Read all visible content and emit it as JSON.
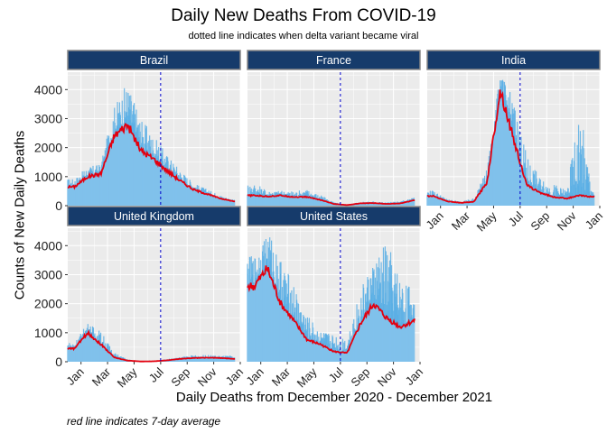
{
  "chart_data": {
    "type": "area",
    "title": "Daily New Deaths From COVID-19",
    "subtitle": "dotted line indicates when delta variant became viral",
    "xlabel": "Daily Deaths from December 2020 - December 2021",
    "ylabel": "Counts of New Daily Deaths",
    "caption": "red line indicates 7-day average",
    "x_ticks": [
      "Jan",
      "Mar",
      "May",
      "Jul",
      "Sep",
      "Nov",
      "Jan"
    ],
    "y_ticks": [
      0,
      1000,
      2000,
      3000,
      4000
    ],
    "ylim": [
      0,
      4600
    ],
    "delta_marker": "2021-07-01",
    "colors": {
      "daily": "#5aafe5",
      "average": "#e3000f",
      "marker": "#0000cc",
      "strip": "#163b6b",
      "panel": "#ebebeb"
    },
    "x_months": [
      "2020-12",
      "2021-01",
      "2021-02",
      "2021-03",
      "2021-04",
      "2021-05",
      "2021-06",
      "2021-07",
      "2021-08",
      "2021-09",
      "2021-10",
      "2021-11",
      "2021-12"
    ],
    "panels": [
      {
        "name": "Brazil",
        "average": [
          650,
          1000,
          1100,
          2400,
          2800,
          1900,
          1600,
          1200,
          850,
          550,
          400,
          250,
          150
        ],
        "daily_max": [
          900,
          1300,
          1400,
          3300,
          4100,
          2900,
          2300,
          1700,
          1200,
          750,
          550,
          350,
          200
        ]
      },
      {
        "name": "France",
        "average": [
          350,
          320,
          350,
          300,
          300,
          200,
          60,
          20,
          80,
          90,
          60,
          80,
          180
        ],
        "daily_max": [
          750,
          500,
          500,
          480,
          550,
          350,
          120,
          40,
          120,
          150,
          110,
          150,
          300
        ]
      },
      {
        "name": "India",
        "average": [
          330,
          150,
          100,
          130,
          800,
          4000,
          2300,
          700,
          450,
          300,
          250,
          350,
          300
        ],
        "daily_max": [
          500,
          220,
          150,
          250,
          1200,
          4500,
          3500,
          1600,
          900,
          700,
          500,
          3000,
          450
        ]
      },
      {
        "name": "United Kingdom",
        "average": [
          450,
          1000,
          600,
          150,
          40,
          10,
          15,
          50,
          100,
          130,
          140,
          130,
          100
        ],
        "daily_max": [
          650,
          1300,
          1000,
          300,
          80,
          30,
          30,
          90,
          160,
          220,
          220,
          200,
          200
        ]
      },
      {
        "name": "United States",
        "average": [
          2600,
          3200,
          2000,
          1400,
          750,
          600,
          350,
          300,
          1300,
          2000,
          1500,
          1200,
          1400
        ],
        "daily_max": [
          3500,
          4400,
          3400,
          2500,
          1500,
          1000,
          900,
          800,
          2300,
          3300,
          3800,
          2700,
          2400
        ]
      }
    ]
  }
}
